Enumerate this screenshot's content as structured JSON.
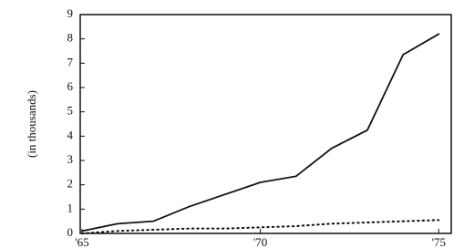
{
  "chart_data": {
    "type": "line",
    "ylabel": "(in thousands)",
    "x": [
      65,
      66,
      67,
      68,
      69,
      70,
      71,
      72,
      73,
      74,
      75
    ],
    "series": [
      {
        "color": "#111111",
        "style": "solid",
        "values": [
          0.1,
          0.4,
          0.5,
          1.1,
          1.6,
          2.1,
          2.35,
          3.5,
          4.25,
          7.35,
          8.2
        ]
      },
      {
        "color": "#111111",
        "style": "dotted",
        "values": [
          0.0,
          0.1,
          0.15,
          0.2,
          0.2,
          0.25,
          0.3,
          0.4,
          0.45,
          0.5,
          0.55
        ]
      }
    ],
    "xlim": [
      64.95,
      75.35
    ],
    "xticks": [
      {
        "value": 65,
        "label": "'65"
      },
      {
        "value": 70,
        "label": "'70"
      },
      {
        "value": 75,
        "label": "'75"
      }
    ],
    "ylim": [
      0,
      9
    ],
    "yticks": [
      0,
      1,
      2,
      3,
      4,
      5,
      6,
      7,
      8,
      9
    ],
    "grid": false
  }
}
